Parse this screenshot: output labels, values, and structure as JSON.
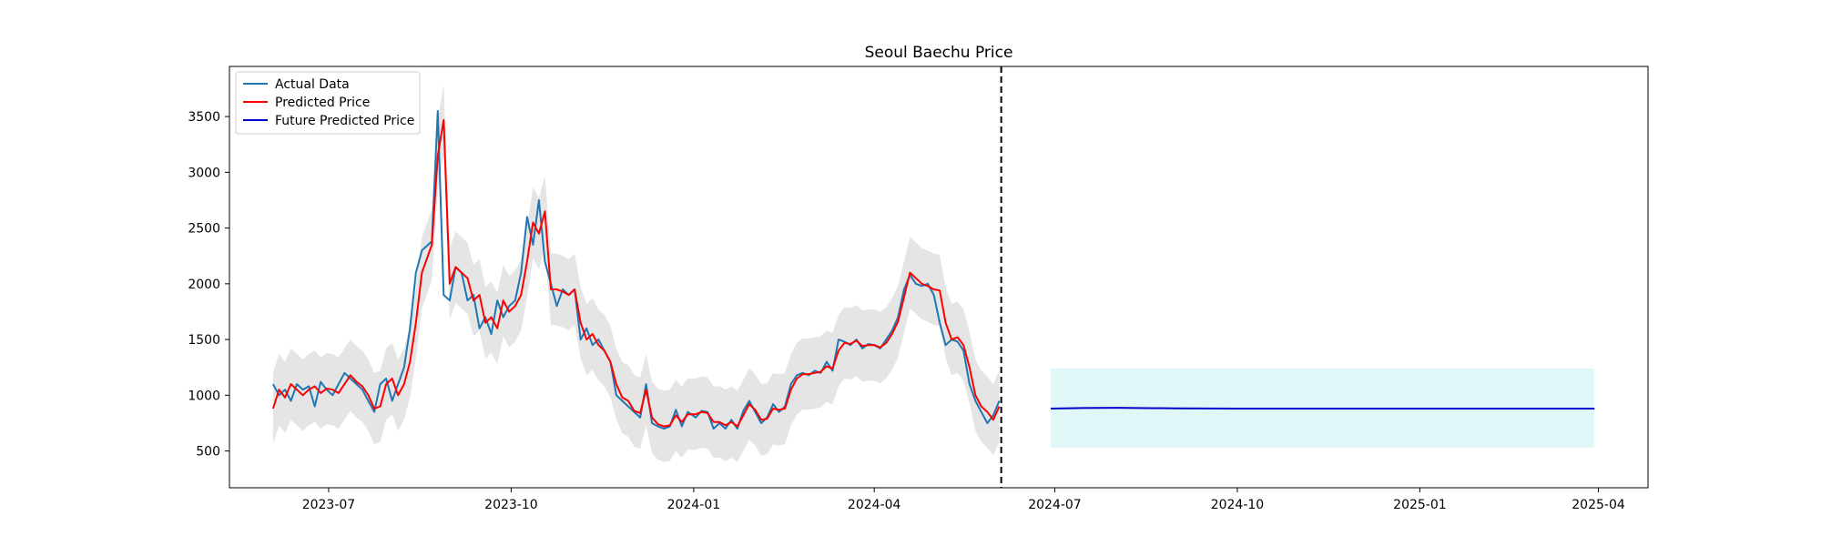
{
  "chart_data": {
    "type": "line",
    "title": "Seoul Baechu Price",
    "xlabel": "",
    "ylabel": "",
    "x_range": [
      "2023-05-12",
      "2025-04-26"
    ],
    "y_range": [
      170,
      3950
    ],
    "x_ticks": [
      "2023-07",
      "2023-10",
      "2024-01",
      "2024-04",
      "2024-07",
      "2024-10",
      "2025-01",
      "2025-04"
    ],
    "y_ticks": [
      500,
      1000,
      1500,
      2000,
      2500,
      3000,
      3500
    ],
    "grid": false,
    "legend_position": "top-left",
    "cutoff_date": "2024-06-04",
    "colors": {
      "actual": "#1f77b4",
      "predicted": "#ff0000",
      "future": "#0000cd",
      "confidence_band": "#d3d3d3",
      "future_band": "#e0f7f7",
      "cutoff_line": "#000000"
    },
    "series": [
      {
        "name": "Actual Data",
        "color": "#1f77b4",
        "points": [
          [
            "2023-06-03",
            1100
          ],
          [
            "2023-06-06",
            1000
          ],
          [
            "2023-06-09",
            1050
          ],
          [
            "2023-06-12",
            950
          ],
          [
            "2023-06-15",
            1100
          ],
          [
            "2023-06-18",
            1050
          ],
          [
            "2023-06-21",
            1080
          ],
          [
            "2023-06-24",
            900
          ],
          [
            "2023-06-27",
            1120
          ],
          [
            "2023-06-30",
            1050
          ],
          [
            "2023-07-03",
            1000
          ],
          [
            "2023-07-06",
            1100
          ],
          [
            "2023-07-09",
            1200
          ],
          [
            "2023-07-12",
            1150
          ],
          [
            "2023-07-15",
            1100
          ],
          [
            "2023-07-18",
            1050
          ],
          [
            "2023-07-21",
            950
          ],
          [
            "2023-07-24",
            850
          ],
          [
            "2023-07-27",
            1100
          ],
          [
            "2023-07-30",
            1150
          ],
          [
            "2023-08-02",
            950
          ],
          [
            "2023-08-05",
            1100
          ],
          [
            "2023-08-08",
            1250
          ],
          [
            "2023-08-11",
            1600
          ],
          [
            "2023-08-14",
            2100
          ],
          [
            "2023-08-17",
            2300
          ],
          [
            "2023-08-22",
            2380
          ],
          [
            "2023-08-25",
            3550
          ],
          [
            "2023-08-28",
            1900
          ],
          [
            "2023-08-31",
            1850
          ],
          [
            "2023-09-03",
            2150
          ],
          [
            "2023-09-06",
            2100
          ],
          [
            "2023-09-09",
            1850
          ],
          [
            "2023-09-12",
            1900
          ],
          [
            "2023-09-15",
            1600
          ],
          [
            "2023-09-18",
            1700
          ],
          [
            "2023-09-21",
            1550
          ],
          [
            "2023-09-24",
            1850
          ],
          [
            "2023-09-27",
            1700
          ],
          [
            "2023-09-30",
            1800
          ],
          [
            "2023-10-03",
            1850
          ],
          [
            "2023-10-06",
            2100
          ],
          [
            "2023-10-09",
            2600
          ],
          [
            "2023-10-12",
            2350
          ],
          [
            "2023-10-15",
            2750
          ],
          [
            "2023-10-18",
            2200
          ],
          [
            "2023-10-21",
            2000
          ],
          [
            "2023-10-24",
            1800
          ],
          [
            "2023-10-27",
            1950
          ],
          [
            "2023-10-30",
            1900
          ],
          [
            "2023-11-02",
            1950
          ],
          [
            "2023-11-05",
            1500
          ],
          [
            "2023-11-08",
            1600
          ],
          [
            "2023-11-11",
            1450
          ],
          [
            "2023-11-14",
            1500
          ],
          [
            "2023-11-17",
            1400
          ],
          [
            "2023-11-20",
            1300
          ],
          [
            "2023-11-23",
            1000
          ],
          [
            "2023-11-26",
            950
          ],
          [
            "2023-11-29",
            900
          ],
          [
            "2023-12-02",
            850
          ],
          [
            "2023-12-05",
            800
          ],
          [
            "2023-12-08",
            1100
          ],
          [
            "2023-12-11",
            750
          ],
          [
            "2023-12-14",
            720
          ],
          [
            "2023-12-17",
            700
          ],
          [
            "2023-12-20",
            720
          ],
          [
            "2023-12-23",
            870
          ],
          [
            "2023-12-26",
            720
          ],
          [
            "2023-12-29",
            850
          ],
          [
            "2024-01-02",
            800
          ],
          [
            "2024-01-05",
            860
          ],
          [
            "2024-01-08",
            850
          ],
          [
            "2024-01-11",
            700
          ],
          [
            "2024-01-14",
            750
          ],
          [
            "2024-01-17",
            700
          ],
          [
            "2024-01-20",
            780
          ],
          [
            "2024-01-23",
            700
          ],
          [
            "2024-01-26",
            860
          ],
          [
            "2024-01-29",
            950
          ],
          [
            "2024-02-01",
            850
          ],
          [
            "2024-02-04",
            750
          ],
          [
            "2024-02-07",
            800
          ],
          [
            "2024-02-10",
            920
          ],
          [
            "2024-02-13",
            850
          ],
          [
            "2024-02-16",
            900
          ],
          [
            "2024-02-19",
            1100
          ],
          [
            "2024-02-22",
            1180
          ],
          [
            "2024-02-25",
            1200
          ],
          [
            "2024-02-28",
            1180
          ],
          [
            "2024-03-02",
            1220
          ],
          [
            "2024-03-05",
            1200
          ],
          [
            "2024-03-08",
            1300
          ],
          [
            "2024-03-11",
            1220
          ],
          [
            "2024-03-14",
            1500
          ],
          [
            "2024-03-17",
            1480
          ],
          [
            "2024-03-20",
            1450
          ],
          [
            "2024-03-23",
            1500
          ],
          [
            "2024-03-26",
            1420
          ],
          [
            "2024-03-29",
            1460
          ],
          [
            "2024-04-01",
            1450
          ],
          [
            "2024-04-04",
            1420
          ],
          [
            "2024-04-07",
            1500
          ],
          [
            "2024-04-10",
            1580
          ],
          [
            "2024-04-13",
            1700
          ],
          [
            "2024-04-16",
            1950
          ],
          [
            "2024-04-19",
            2080
          ],
          [
            "2024-04-22",
            2000
          ],
          [
            "2024-04-25",
            1980
          ],
          [
            "2024-04-28",
            2000
          ],
          [
            "2024-05-01",
            1900
          ],
          [
            "2024-05-04",
            1650
          ],
          [
            "2024-05-07",
            1450
          ],
          [
            "2024-05-10",
            1500
          ],
          [
            "2024-05-13",
            1480
          ],
          [
            "2024-05-16",
            1400
          ],
          [
            "2024-05-19",
            1100
          ],
          [
            "2024-05-22",
            950
          ],
          [
            "2024-05-25",
            850
          ],
          [
            "2024-05-28",
            750
          ],
          [
            "2024-05-31",
            820
          ],
          [
            "2024-06-03",
            950
          ]
        ]
      },
      {
        "name": "Predicted Price",
        "color": "#ff0000",
        "points": [
          [
            "2023-06-03",
            880
          ],
          [
            "2023-06-06",
            1050
          ],
          [
            "2023-06-09",
            980
          ],
          [
            "2023-06-12",
            1100
          ],
          [
            "2023-06-15",
            1050
          ],
          [
            "2023-06-18",
            1000
          ],
          [
            "2023-06-21",
            1050
          ],
          [
            "2023-06-24",
            1080
          ],
          [
            "2023-06-27",
            1020
          ],
          [
            "2023-06-30",
            1060
          ],
          [
            "2023-07-03",
            1050
          ],
          [
            "2023-07-06",
            1020
          ],
          [
            "2023-07-09",
            1100
          ],
          [
            "2023-07-12",
            1180
          ],
          [
            "2023-07-15",
            1120
          ],
          [
            "2023-07-18",
            1080
          ],
          [
            "2023-07-21",
            1000
          ],
          [
            "2023-07-24",
            880
          ],
          [
            "2023-07-27",
            900
          ],
          [
            "2023-07-30",
            1100
          ],
          [
            "2023-08-02",
            1150
          ],
          [
            "2023-08-05",
            1000
          ],
          [
            "2023-08-08",
            1100
          ],
          [
            "2023-08-11",
            1300
          ],
          [
            "2023-08-14",
            1650
          ],
          [
            "2023-08-17",
            2100
          ],
          [
            "2023-08-22",
            2350
          ],
          [
            "2023-08-25",
            3150
          ],
          [
            "2023-08-28",
            3470
          ],
          [
            "2023-08-31",
            2000
          ],
          [
            "2023-09-03",
            2150
          ],
          [
            "2023-09-06",
            2100
          ],
          [
            "2023-09-09",
            2050
          ],
          [
            "2023-09-12",
            1850
          ],
          [
            "2023-09-15",
            1900
          ],
          [
            "2023-09-18",
            1650
          ],
          [
            "2023-09-21",
            1700
          ],
          [
            "2023-09-24",
            1600
          ],
          [
            "2023-09-27",
            1850
          ],
          [
            "2023-09-30",
            1750
          ],
          [
            "2023-10-03",
            1800
          ],
          [
            "2023-10-06",
            1900
          ],
          [
            "2023-10-09",
            2200
          ],
          [
            "2023-10-12",
            2550
          ],
          [
            "2023-10-15",
            2450
          ],
          [
            "2023-10-18",
            2650
          ],
          [
            "2023-10-21",
            1950
          ],
          [
            "2023-10-24",
            1950
          ],
          [
            "2023-10-27",
            1930
          ],
          [
            "2023-10-30",
            1900
          ],
          [
            "2023-11-02",
            1950
          ],
          [
            "2023-11-05",
            1650
          ],
          [
            "2023-11-08",
            1500
          ],
          [
            "2023-11-11",
            1550
          ],
          [
            "2023-11-14",
            1450
          ],
          [
            "2023-11-17",
            1400
          ],
          [
            "2023-11-20",
            1300
          ],
          [
            "2023-11-23",
            1100
          ],
          [
            "2023-11-26",
            980
          ],
          [
            "2023-11-29",
            950
          ],
          [
            "2023-12-02",
            860
          ],
          [
            "2023-12-05",
            840
          ],
          [
            "2023-12-08",
            1050
          ],
          [
            "2023-12-11",
            800
          ],
          [
            "2023-12-14",
            740
          ],
          [
            "2023-12-17",
            720
          ],
          [
            "2023-12-20",
            730
          ],
          [
            "2023-12-23",
            820
          ],
          [
            "2023-12-26",
            760
          ],
          [
            "2023-12-29",
            830
          ],
          [
            "2024-01-02",
            830
          ],
          [
            "2024-01-05",
            850
          ],
          [
            "2024-01-08",
            840
          ],
          [
            "2024-01-11",
            760
          ],
          [
            "2024-01-14",
            760
          ],
          [
            "2024-01-17",
            730
          ],
          [
            "2024-01-20",
            760
          ],
          [
            "2024-01-23",
            720
          ],
          [
            "2024-01-26",
            820
          ],
          [
            "2024-01-29",
            920
          ],
          [
            "2024-02-01",
            870
          ],
          [
            "2024-02-04",
            780
          ],
          [
            "2024-02-07",
            790
          ],
          [
            "2024-02-10",
            880
          ],
          [
            "2024-02-13",
            870
          ],
          [
            "2024-02-16",
            880
          ],
          [
            "2024-02-19",
            1050
          ],
          [
            "2024-02-22",
            1150
          ],
          [
            "2024-02-25",
            1190
          ],
          [
            "2024-02-28",
            1190
          ],
          [
            "2024-03-02",
            1200
          ],
          [
            "2024-03-05",
            1210
          ],
          [
            "2024-03-08",
            1260
          ],
          [
            "2024-03-11",
            1240
          ],
          [
            "2024-03-14",
            1400
          ],
          [
            "2024-03-17",
            1470
          ],
          [
            "2024-03-20",
            1460
          ],
          [
            "2024-03-23",
            1490
          ],
          [
            "2024-03-26",
            1440
          ],
          [
            "2024-03-29",
            1450
          ],
          [
            "2024-04-01",
            1450
          ],
          [
            "2024-04-04",
            1430
          ],
          [
            "2024-04-07",
            1470
          ],
          [
            "2024-04-10",
            1550
          ],
          [
            "2024-04-13",
            1660
          ],
          [
            "2024-04-16",
            1880
          ],
          [
            "2024-04-19",
            2100
          ],
          [
            "2024-04-22",
            2050
          ],
          [
            "2024-04-25",
            2000
          ],
          [
            "2024-04-28",
            1980
          ],
          [
            "2024-05-01",
            1950
          ],
          [
            "2024-05-04",
            1940
          ],
          [
            "2024-05-07",
            1650
          ],
          [
            "2024-05-10",
            1500
          ],
          [
            "2024-05-13",
            1520
          ],
          [
            "2024-05-16",
            1450
          ],
          [
            "2024-05-19",
            1250
          ],
          [
            "2024-05-22",
            1000
          ],
          [
            "2024-05-25",
            900
          ],
          [
            "2024-05-28",
            850
          ],
          [
            "2024-05-31",
            780
          ],
          [
            "2024-06-03",
            900
          ]
        ]
      },
      {
        "name": "Future Predicted Price",
        "color": "#0000cd",
        "points": [
          [
            "2024-06-29",
            880
          ],
          [
            "2024-07-15",
            885
          ],
          [
            "2024-08-01",
            888
          ],
          [
            "2024-09-01",
            882
          ],
          [
            "2024-10-01",
            880
          ],
          [
            "2024-11-01",
            880
          ],
          [
            "2024-12-01",
            880
          ],
          [
            "2025-01-01",
            880
          ],
          [
            "2025-02-01",
            880
          ],
          [
            "2025-03-01",
            880
          ],
          [
            "2025-03-30",
            880
          ]
        ]
      }
    ],
    "confidence_band": {
      "offset": 320,
      "applies_to": "Predicted Price"
    },
    "future_band": {
      "x": [
        "2024-06-29",
        "2025-03-30"
      ],
      "lower": 530,
      "upper": 1240
    }
  }
}
